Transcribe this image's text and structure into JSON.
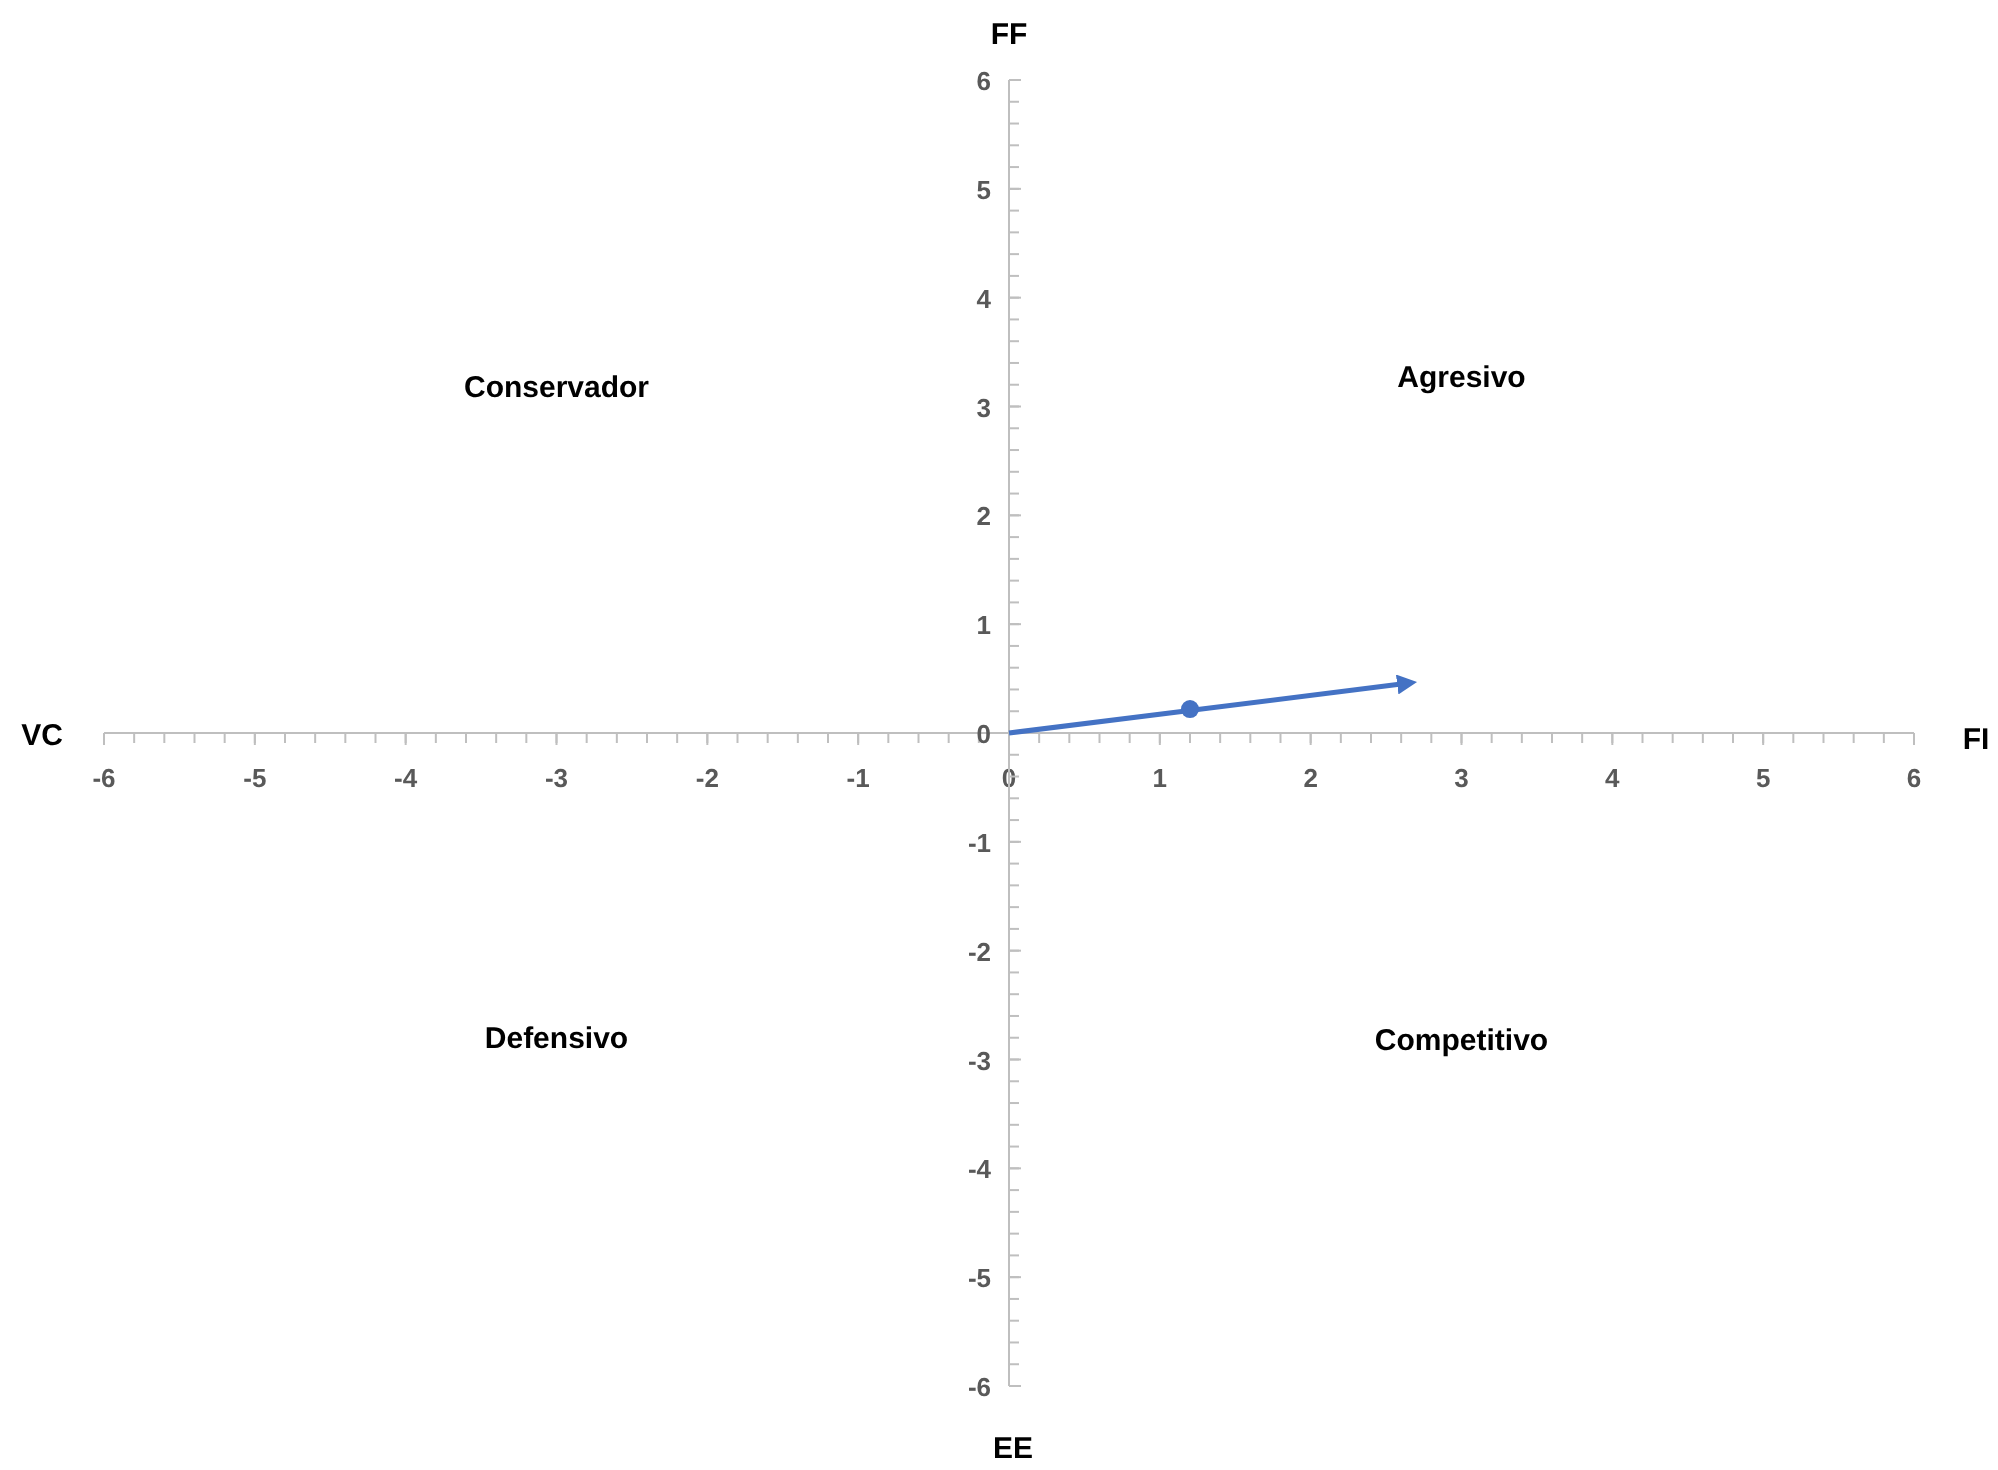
{
  "chart_data": {
    "type": "line",
    "xlabel": "FI",
    "ylabel": "FF",
    "annotations": [
      "Conservador",
      "Agresivo",
      "Defensivo",
      "Competitivo",
      "VC",
      "EE"
    ],
    "xlim": [
      -6,
      6
    ],
    "ylim": [
      -6,
      6
    ],
    "xticks": [
      -6,
      -5,
      -4,
      -3,
      -2,
      -1,
      0,
      1,
      2,
      3,
      4,
      5,
      6
    ],
    "yticks": [
      -6,
      -5,
      -4,
      -3,
      -2,
      -1,
      0,
      1,
      2,
      3,
      4,
      5,
      6
    ],
    "grid": false,
    "series": [
      {
        "color": "#4472c4",
        "x": [
          0,
          2.6
        ],
        "values": [
          0,
          0.45
        ],
        "marker": "none"
      },
      {
        "type": "scatter",
        "color": "#4472c4",
        "x": [
          1.2
        ],
        "values": [
          0.22
        ],
        "marker": "circle"
      }
    ]
  }
}
